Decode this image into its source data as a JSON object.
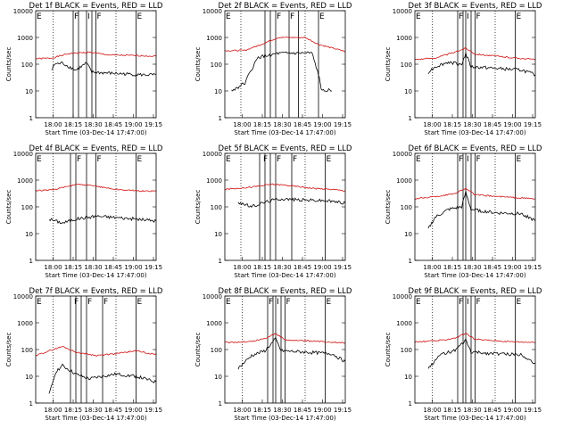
{
  "colors": {
    "events": "#000000",
    "lld": "#d01010",
    "frame": "#000000"
  },
  "y_axis_label": "Counts/sec",
  "x_axis_label": "Start Time (03-Dec-14 17:47:00)",
  "x_tick_labels": [
    "18:00",
    "18:15",
    "18:30",
    "18:45",
    "19:00",
    "19:15"
  ],
  "y_tick_labels": [
    "1",
    "10",
    "100",
    "1000",
    "10000"
  ],
  "chart_data": [
    {
      "type": "line",
      "title": "Det 1f BLACK = Events, RED = LLD",
      "panel_labels": [
        {
          "text": "E",
          "x": 0
        },
        {
          "text": "F",
          "x": 28
        },
        {
          "text": "I",
          "x": 38
        },
        {
          "text": "F",
          "x": 45
        },
        {
          "text": "E",
          "x": 75
        }
      ],
      "solid_lines": [
        28,
        32,
        38,
        42,
        45,
        75
      ],
      "dotted_lines": [
        13,
        60
      ],
      "xlim": [
        0,
        90
      ],
      "ylim_log": [
        1,
        10000
      ],
      "series": [
        {
          "color": "lld",
          "points": [
            [
              0,
              160
            ],
            [
              12,
              170
            ],
            [
              25,
              250
            ],
            [
              40,
              280
            ],
            [
              55,
              220
            ],
            [
              75,
              210
            ],
            [
              90,
              200
            ]
          ]
        },
        {
          "color": "events",
          "points": [
            [
              12,
              60
            ],
            [
              14,
              100
            ],
            [
              20,
              110
            ],
            [
              25,
              80
            ],
            [
              30,
              60
            ],
            [
              38,
              110
            ],
            [
              42,
              50
            ],
            [
              60,
              45
            ],
            [
              80,
              40
            ],
            [
              90,
              40
            ]
          ]
        }
      ]
    },
    {
      "type": "line",
      "title": "Det 2f BLACK = Events, RED = LLD",
      "panel_labels": [
        {
          "text": "E",
          "x": 0
        },
        {
          "text": "F",
          "x": 38
        },
        {
          "text": "F",
          "x": 48
        },
        {
          "text": "E",
          "x": 70
        }
      ],
      "solid_lines": [
        30,
        34,
        38,
        48,
        55,
        70
      ],
      "dotted_lines": [
        12,
        60
      ],
      "xlim": [
        0,
        90
      ],
      "ylim_log": [
        1,
        10000
      ],
      "series": [
        {
          "color": "lld",
          "points": [
            [
              0,
              320
            ],
            [
              15,
              330
            ],
            [
              25,
              500
            ],
            [
              40,
              1000
            ],
            [
              60,
              1000
            ],
            [
              70,
              550
            ],
            [
              90,
              300
            ]
          ]
        },
        {
          "color": "events",
          "points": [
            [
              5,
              10
            ],
            [
              15,
              20
            ],
            [
              22,
              100
            ],
            [
              25,
              180
            ],
            [
              40,
              250
            ],
            [
              65,
              260
            ],
            [
              70,
              40
            ],
            [
              72,
              12
            ],
            [
              80,
              10
            ]
          ]
        }
      ]
    },
    {
      "type": "line",
      "title": "Det 3f BLACK = Events, RED = LLD",
      "panel_labels": [
        {
          "text": "E",
          "x": 0
        },
        {
          "text": "F",
          "x": 32
        },
        {
          "text": "I",
          "x": 38
        },
        {
          "text": "F",
          "x": 45
        },
        {
          "text": "E",
          "x": 75
        }
      ],
      "solid_lines": [
        32,
        36,
        38,
        42,
        45,
        75
      ],
      "dotted_lines": [
        13,
        60
      ],
      "xlim": [
        0,
        90
      ],
      "ylim_log": [
        1,
        10000
      ],
      "series": [
        {
          "color": "lld",
          "points": [
            [
              0,
              150
            ],
            [
              15,
              170
            ],
            [
              30,
              280
            ],
            [
              38,
              400
            ],
            [
              45,
              240
            ],
            [
              70,
              180
            ],
            [
              90,
              150
            ]
          ]
        },
        {
          "color": "events",
          "points": [
            [
              10,
              50
            ],
            [
              15,
              80
            ],
            [
              25,
              120
            ],
            [
              35,
              100
            ],
            [
              38,
              250
            ],
            [
              42,
              80
            ],
            [
              60,
              70
            ],
            [
              80,
              60
            ],
            [
              90,
              40
            ]
          ]
        }
      ]
    },
    {
      "type": "line",
      "title": "Det 4f BLACK = Events, RED = LLD",
      "panel_labels": [
        {
          "text": "E",
          "x": 0
        },
        {
          "text": "F",
          "x": 30
        },
        {
          "text": "F",
          "x": 45
        },
        {
          "text": "E",
          "x": 75
        }
      ],
      "solid_lines": [
        26,
        30,
        38,
        45,
        75
      ],
      "dotted_lines": [
        13,
        60
      ],
      "xlim": [
        0,
        90
      ],
      "ylim_log": [
        1,
        10000
      ],
      "series": [
        {
          "color": "lld",
          "points": [
            [
              0,
              400
            ],
            [
              15,
              450
            ],
            [
              30,
              700
            ],
            [
              45,
              600
            ],
            [
              60,
              450
            ],
            [
              75,
              400
            ],
            [
              90,
              380
            ]
          ]
        },
        {
          "color": "events",
          "points": [
            [
              10,
              35
            ],
            [
              20,
              25
            ],
            [
              30,
              35
            ],
            [
              45,
              45
            ],
            [
              60,
              40
            ],
            [
              75,
              35
            ],
            [
              90,
              30
            ]
          ]
        }
      ]
    },
    {
      "type": "line",
      "title": "Det 5f BLACK = Events, RED = LLD",
      "panel_labels": [
        {
          "text": "E",
          "x": 0
        },
        {
          "text": "F",
          "x": 28
        },
        {
          "text": "F",
          "x": 38
        },
        {
          "text": "F",
          "x": 50
        },
        {
          "text": "E",
          "x": 75
        }
      ],
      "solid_lines": [
        26,
        30,
        34,
        38,
        50,
        75
      ],
      "dotted_lines": [
        12,
        60
      ],
      "xlim": [
        0,
        90
      ],
      "ylim_log": [
        1,
        10000
      ],
      "series": [
        {
          "color": "lld",
          "points": [
            [
              0,
              450
            ],
            [
              20,
              550
            ],
            [
              35,
              700
            ],
            [
              45,
              650
            ],
            [
              65,
              500
            ],
            [
              80,
              450
            ],
            [
              90,
              400
            ]
          ]
        },
        {
          "color": "events",
          "points": [
            [
              10,
              150
            ],
            [
              20,
              100
            ],
            [
              30,
              150
            ],
            [
              40,
              200
            ],
            [
              60,
              180
            ],
            [
              75,
              170
            ],
            [
              90,
              140
            ]
          ]
        }
      ]
    },
    {
      "type": "line",
      "title": "Det 6f BLACK = Events, RED = LLD",
      "panel_labels": [
        {
          "text": "E",
          "x": 0
        },
        {
          "text": "F",
          "x": 32
        },
        {
          "text": "I",
          "x": 38
        },
        {
          "text": "F",
          "x": 45
        },
        {
          "text": "E",
          "x": 75
        }
      ],
      "solid_lines": [
        32,
        36,
        38,
        42,
        45,
        75
      ],
      "dotted_lines": [
        13,
        60
      ],
      "xlim": [
        0,
        90
      ],
      "ylim_log": [
        1,
        10000
      ],
      "series": [
        {
          "color": "lld",
          "points": [
            [
              0,
              200
            ],
            [
              20,
              260
            ],
            [
              30,
              320
            ],
            [
              38,
              500
            ],
            [
              45,
              280
            ],
            [
              70,
              230
            ],
            [
              90,
              200
            ]
          ]
        },
        {
          "color": "events",
          "points": [
            [
              10,
              15
            ],
            [
              15,
              40
            ],
            [
              25,
              80
            ],
            [
              35,
              100
            ],
            [
              38,
              350
            ],
            [
              42,
              80
            ],
            [
              60,
              60
            ],
            [
              80,
              55
            ],
            [
              90,
              30
            ]
          ]
        }
      ]
    },
    {
      "type": "line",
      "title": "Det 7f BLACK = Events, RED = LLD",
      "panel_labels": [
        {
          "text": "E",
          "x": 0
        },
        {
          "text": "F",
          "x": 28
        },
        {
          "text": "F",
          "x": 38
        },
        {
          "text": "F",
          "x": 50
        },
        {
          "text": "E",
          "x": 75
        }
      ],
      "solid_lines": [
        26,
        30,
        34,
        38,
        50,
        75
      ],
      "dotted_lines": [
        13,
        60
      ],
      "xlim": [
        0,
        90
      ],
      "ylim_log": [
        1,
        10000
      ],
      "series": [
        {
          "color": "lld",
          "points": [
            [
              0,
              60
            ],
            [
              20,
              130
            ],
            [
              30,
              80
            ],
            [
              45,
              60
            ],
            [
              60,
              70
            ],
            [
              75,
              90
            ],
            [
              90,
              65
            ]
          ]
        },
        {
          "color": "events",
          "points": [
            [
              10,
              2
            ],
            [
              15,
              15
            ],
            [
              20,
              25
            ],
            [
              30,
              12
            ],
            [
              40,
              8
            ],
            [
              50,
              10
            ],
            [
              60,
              12
            ],
            [
              75,
              10
            ],
            [
              90,
              6
            ]
          ]
        }
      ]
    },
    {
      "type": "line",
      "title": "Det 8f BLACK = Events, RED = LLD",
      "panel_labels": [
        {
          "text": "E",
          "x": 0
        },
        {
          "text": "F",
          "x": 32
        },
        {
          "text": "I",
          "x": 38
        },
        {
          "text": "F",
          "x": 45
        },
        {
          "text": "E",
          "x": 75
        }
      ],
      "solid_lines": [
        32,
        36,
        38,
        42,
        45,
        75
      ],
      "dotted_lines": [
        13,
        60
      ],
      "xlim": [
        0,
        90
      ],
      "ylim_log": [
        1,
        10000
      ],
      "series": [
        {
          "color": "lld",
          "points": [
            [
              0,
              180
            ],
            [
              20,
              200
            ],
            [
              30,
              260
            ],
            [
              38,
              400
            ],
            [
              45,
              230
            ],
            [
              70,
              200
            ],
            [
              90,
              180
            ]
          ]
        },
        {
          "color": "events",
          "points": [
            [
              10,
              20
            ],
            [
              20,
              60
            ],
            [
              30,
              90
            ],
            [
              38,
              250
            ],
            [
              42,
              90
            ],
            [
              60,
              80
            ],
            [
              80,
              70
            ],
            [
              90,
              35
            ]
          ]
        }
      ]
    },
    {
      "type": "line",
      "title": "Det 9f BLACK = Events, RED = LLD",
      "panel_labels": [
        {
          "text": "E",
          "x": 0
        },
        {
          "text": "F",
          "x": 32
        },
        {
          "text": "I",
          "x": 38
        },
        {
          "text": "F",
          "x": 45
        },
        {
          "text": "E",
          "x": 75
        }
      ],
      "solid_lines": [
        32,
        36,
        38,
        42,
        45,
        75
      ],
      "dotted_lines": [
        13,
        60
      ],
      "xlim": [
        0,
        90
      ],
      "ylim_log": [
        1,
        10000
      ],
      "series": [
        {
          "color": "lld",
          "points": [
            [
              0,
              190
            ],
            [
              20,
              220
            ],
            [
              30,
              270
            ],
            [
              38,
              400
            ],
            [
              45,
              240
            ],
            [
              70,
              200
            ],
            [
              90,
              185
            ]
          ]
        },
        {
          "color": "events",
          "points": [
            [
              10,
              20
            ],
            [
              20,
              70
            ],
            [
              30,
              90
            ],
            [
              38,
              220
            ],
            [
              42,
              80
            ],
            [
              60,
              70
            ],
            [
              80,
              65
            ],
            [
              90,
              30
            ]
          ]
        }
      ]
    }
  ]
}
